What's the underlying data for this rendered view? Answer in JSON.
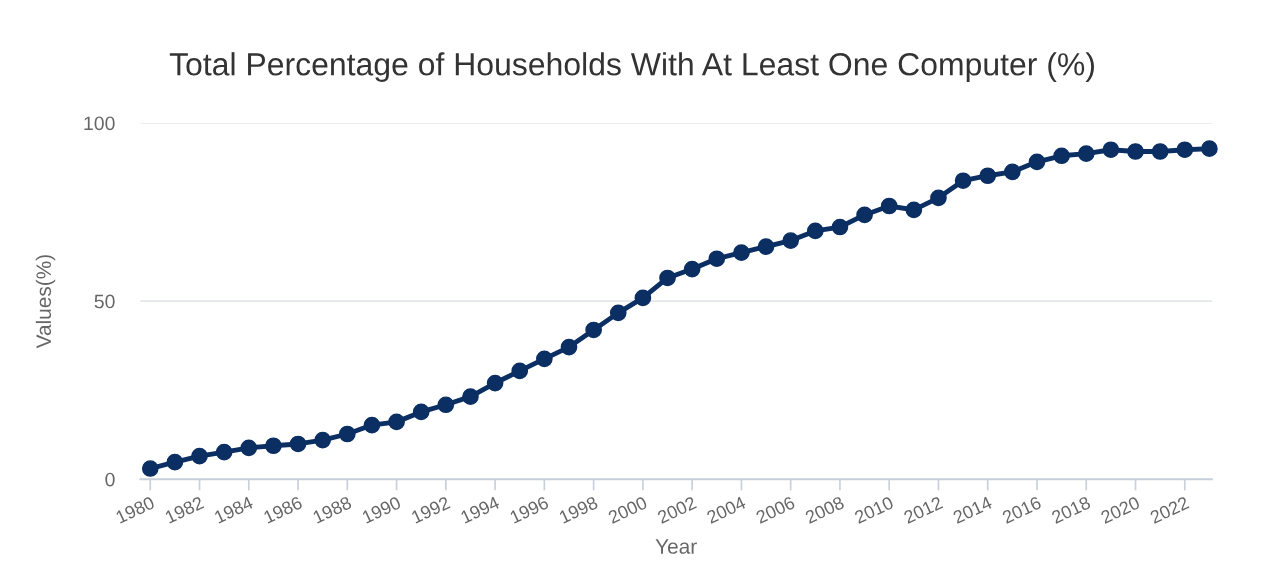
{
  "chart_data": {
    "type": "line",
    "title": "Total Percentage of Households With At Least One Computer (%)",
    "xlabel": "Year",
    "ylabel": "Values(%)",
    "x": [
      1980,
      1981,
      1982,
      1983,
      1984,
      1985,
      1986,
      1987,
      1988,
      1989,
      1990,
      1991,
      1992,
      1993,
      1994,
      1995,
      1996,
      1997,
      1998,
      1999,
      2000,
      2001,
      2002,
      2003,
      2004,
      2005,
      2006,
      2007,
      2008,
      2009,
      2010,
      2011,
      2012,
      2013,
      2014,
      2015,
      2016,
      2017,
      2018,
      2019,
      2020,
      2021,
      2022,
      2023
    ],
    "series": [
      {
        "color": "#0b2f63",
        "values": [
          3,
          4.8,
          6.5,
          7.6,
          8.8,
          9.4,
          9.9,
          11,
          12.7,
          15.2,
          16.1,
          18.9,
          20.9,
          23.2,
          27,
          30.4,
          33.8,
          37.1,
          41.9,
          46.7,
          50.9,
          56.5,
          59,
          61.9,
          63.6,
          65.3,
          67,
          69.7,
          70.8,
          74.2,
          76.7,
          75.6,
          79,
          83.8,
          85.2,
          86.3,
          89.1,
          90.8,
          91.4,
          92.5,
          92,
          92,
          92.5,
          92.8
        ]
      }
    ],
    "xlim": [
      1979.6,
      2023.1
    ],
    "xticks": [
      1980,
      1982,
      1984,
      1986,
      1988,
      1990,
      1992,
      1994,
      1996,
      1998,
      2000,
      2002,
      2004,
      2006,
      2008,
      2010,
      2012,
      2014,
      2016,
      2018,
      2020,
      2022
    ],
    "ylim": [
      0,
      100
    ],
    "yticks": [
      0,
      50,
      100
    ],
    "grid": "y",
    "marker": "circle",
    "line_style": "solid"
  }
}
